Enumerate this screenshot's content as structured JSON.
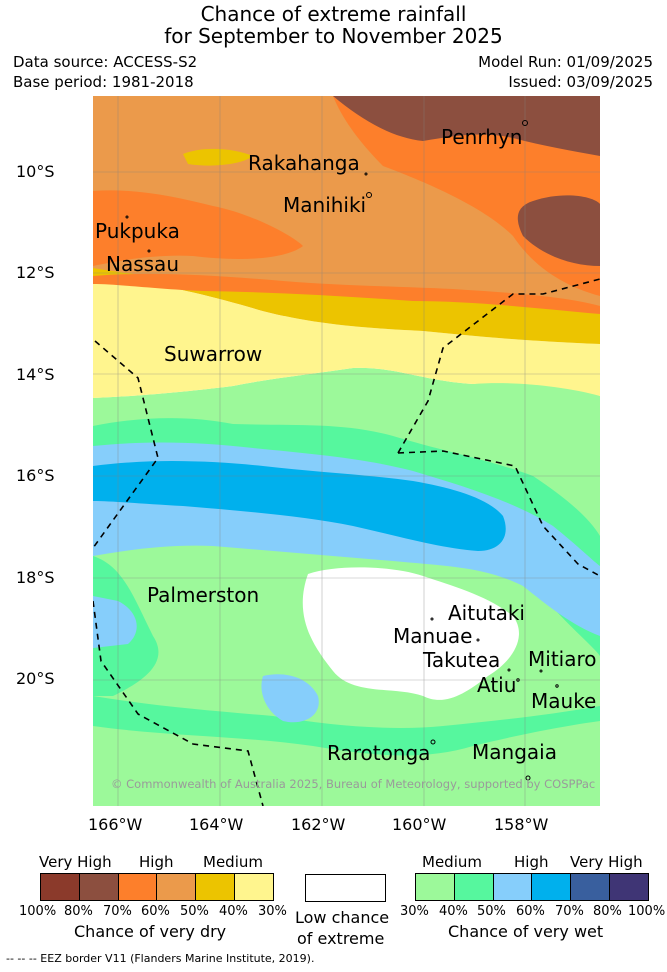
{
  "header": {
    "title_line1": "Chance of extreme rainfall",
    "title_line2": "for September to November 2025",
    "data_source": "Data source: ACCESS-S2",
    "base_period": "Base period: 1981-2018",
    "model_run": "Model Run: 01/09/2025",
    "issued": "Issued: 03/09/2025"
  },
  "map": {
    "y_ticks": [
      "10°S",
      "12°S",
      "14°S",
      "16°S",
      "18°S",
      "20°S"
    ],
    "x_ticks": [
      "166°W",
      "164°W",
      "162°W",
      "160°W",
      "158°W"
    ],
    "places": {
      "penrhyn": "Penrhyn",
      "rakahanga": "Rakahanga",
      "manihiki": "Manihiki",
      "pukpuka": "Pukpuka",
      "nassau": "Nassau",
      "suwarrow": "Suwarrow",
      "palmerston": "Palmerston",
      "aitutaki": "Aitutaki",
      "manuae": "Manuae",
      "takutea": "Takutea",
      "mitiaro": "Mitiaro",
      "atiu": "Atiu",
      "mauke": "Mauke",
      "rarotonga": "Rarotonga",
      "mangaia": "Mangaia"
    },
    "credit": "© Commonwealth of Australia 2025, Bureau of Meteorology, supported by COSPPac"
  },
  "legend": {
    "dry": {
      "headers": [
        "Very High",
        "High",
        "Medium"
      ],
      "pcts": [
        "100%",
        "80%",
        "70%",
        "60%",
        "50%",
        "40%",
        "30%"
      ],
      "colors": [
        "#8b3a2b",
        "#8c4f3f",
        "#fd7f2b",
        "#eb9a4b",
        "#ecc400",
        "#fff58e"
      ],
      "caption": "Chance of very dry"
    },
    "neutral": {
      "color": "#ffffff",
      "caption_line1": "Low chance",
      "caption_line2": "of extreme"
    },
    "wet": {
      "headers": [
        "Medium",
        "High",
        "Very High"
      ],
      "pcts": [
        "30%",
        "40%",
        "50%",
        "60%",
        "70%",
        "80%",
        "100%"
      ],
      "colors": [
        "#9cf99a",
        "#56f79e",
        "#86cefb",
        "#00b0ed",
        "#395f9e",
        "#3f3575"
      ],
      "caption": "Chance of very wet"
    }
  },
  "footer": "--  --  -- EEZ border V11 (Flanders Marine Institute, 2019)."
}
